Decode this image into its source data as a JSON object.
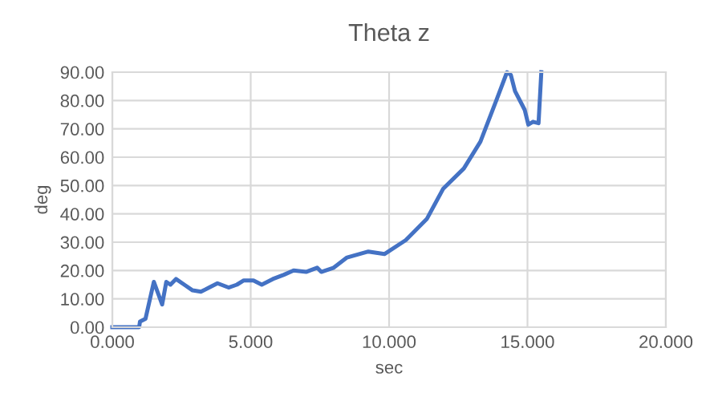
{
  "chart_data": {
    "type": "line",
    "title": "Theta z",
    "xlabel": "sec",
    "ylabel": "deg",
    "x": [
      0,
      0.97,
      1.0,
      1.2,
      1.5,
      1.8,
      1.95,
      2.1,
      2.3,
      2.6,
      2.9,
      3.2,
      3.5,
      3.8,
      4.2,
      4.5,
      4.75,
      5.1,
      5.4,
      5.8,
      6.2,
      6.55,
      7.0,
      7.4,
      7.55,
      8.0,
      8.48,
      9.25,
      9.83,
      10.6,
      11.37,
      11.95,
      12.7,
      13.3,
      13.9,
      14.26,
      14.4,
      14.55,
      14.9,
      15.03,
      15.2,
      15.4,
      15.5
    ],
    "series": [
      {
        "color": "#4472c4",
        "values": [
          0,
          0,
          2,
          3,
          16,
          8,
          16,
          15,
          17,
          15,
          13,
          12.5,
          14,
          15.5,
          14,
          15,
          16.5,
          16.5,
          15,
          17,
          18.5,
          20,
          19.5,
          21,
          19.5,
          21,
          24.6,
          26.7,
          25.8,
          30.7,
          38.3,
          48.8,
          56,
          65.5,
          80.7,
          90,
          89,
          83.3,
          76.7,
          71.5,
          72.5,
          72,
          90
        ]
      }
    ],
    "xlim": [
      0,
      20
    ],
    "xticks": [
      {
        "value": 0,
        "label": "0.000"
      },
      {
        "value": 5,
        "label": "5.000"
      },
      {
        "value": 10,
        "label": "10.000"
      },
      {
        "value": 15,
        "label": "15.000"
      },
      {
        "value": 20,
        "label": "20.000"
      }
    ],
    "ylim": [
      0,
      90
    ],
    "yticks": [
      {
        "value": 0,
        "label": "0.00"
      },
      {
        "value": 10,
        "label": "10.00"
      },
      {
        "value": 20,
        "label": "20.00"
      },
      {
        "value": 30,
        "label": "30.00"
      },
      {
        "value": 40,
        "label": "40.00"
      },
      {
        "value": 50,
        "label": "50.00"
      },
      {
        "value": 60,
        "label": "60.00"
      },
      {
        "value": 70,
        "label": "70.00"
      },
      {
        "value": 80,
        "label": "80.00"
      },
      {
        "value": 90,
        "label": "90.00"
      }
    ],
    "grid": true
  }
}
